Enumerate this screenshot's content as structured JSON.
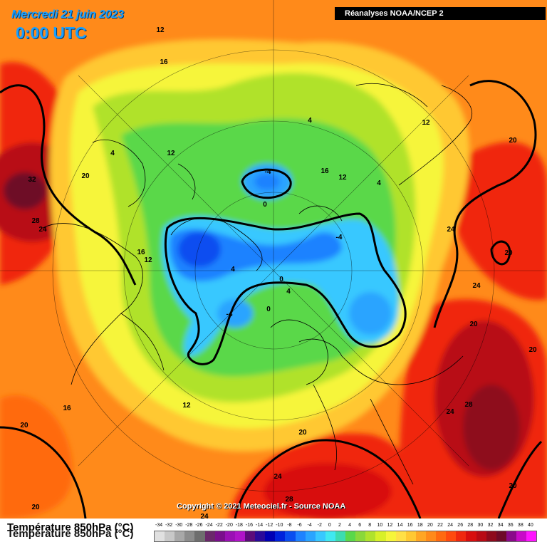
{
  "header": {
    "date": "Mercredi 21 juin 2023",
    "time": "0:00 UTC",
    "source": "Réanalyses NOAA/NCEP 2"
  },
  "footer": {
    "copyright": "Copyright © 2021 Meteociel.fr - Source NOAA"
  },
  "legend": {
    "title": "Température 850hPa (°C)",
    "ticks": [
      "-34",
      "-32",
      "-30",
      "-28",
      "-26",
      "-24",
      "-22",
      "-20",
      "-18",
      "-16",
      "-14",
      "-12",
      "-10",
      "-8",
      "-6",
      "-4",
      "-2",
      "0",
      "2",
      "4",
      "6",
      "8",
      "10",
      "12",
      "14",
      "16",
      "18",
      "20",
      "22",
      "24",
      "26",
      "28",
      "30",
      "32",
      "34",
      "36",
      "38",
      "40"
    ],
    "colors": [
      "#e0e0e0",
      "#c8c8c8",
      "#a8a8a8",
      "#8c8c8c",
      "#6e6e6e",
      "#6a286a",
      "#7a0f8c",
      "#9a10b4",
      "#b013c8",
      "#5c0b7a",
      "#2a0a9a",
      "#0000b4",
      "#0022dc",
      "#0a4ef0",
      "#1e82ff",
      "#2aa4ff",
      "#38c8ff",
      "#40e8f0",
      "#3cdcb0",
      "#5ad84a",
      "#8ad83a",
      "#b0e22c",
      "#d8f028",
      "#f6f53a",
      "#ffe046",
      "#ffc832",
      "#ffa624",
      "#ff8a1a",
      "#ff6a10",
      "#ff4a0e",
      "#f0280e",
      "#d80e0e",
      "#b80a14",
      "#8e0a1c",
      "#6e0a28",
      "#8a0a8a",
      "#c80ac8",
      "#ff14ff"
    ]
  },
  "map_labels": [
    {
      "value": "12"
    },
    {
      "value": "16"
    },
    {
      "value": "12"
    },
    {
      "value": "4"
    },
    {
      "value": "4"
    },
    {
      "value": "12"
    },
    {
      "value": "20"
    },
    {
      "value": "20"
    },
    {
      "value": "32"
    },
    {
      "value": "28"
    },
    {
      "value": "24"
    },
    {
      "value": "-4"
    },
    {
      "value": "0"
    },
    {
      "value": "16"
    },
    {
      "value": "12"
    },
    {
      "value": "4"
    },
    {
      "value": "16"
    },
    {
      "value": "12"
    },
    {
      "value": "-4"
    },
    {
      "value": "4"
    },
    {
      "value": "0"
    },
    {
      "value": "4"
    },
    {
      "value": "24"
    },
    {
      "value": "20"
    },
    {
      "value": "24"
    },
    {
      "value": "-4"
    },
    {
      "value": "0"
    },
    {
      "value": "20"
    },
    {
      "value": "20"
    },
    {
      "value": "16"
    },
    {
      "value": "12"
    },
    {
      "value": "24"
    },
    {
      "value": "28"
    },
    {
      "value": "20"
    },
    {
      "value": "20"
    },
    {
      "value": "24"
    },
    {
      "value": "28"
    },
    {
      "value": "20"
    },
    {
      "value": "24"
    },
    {
      "value": "20"
    }
  ]
}
